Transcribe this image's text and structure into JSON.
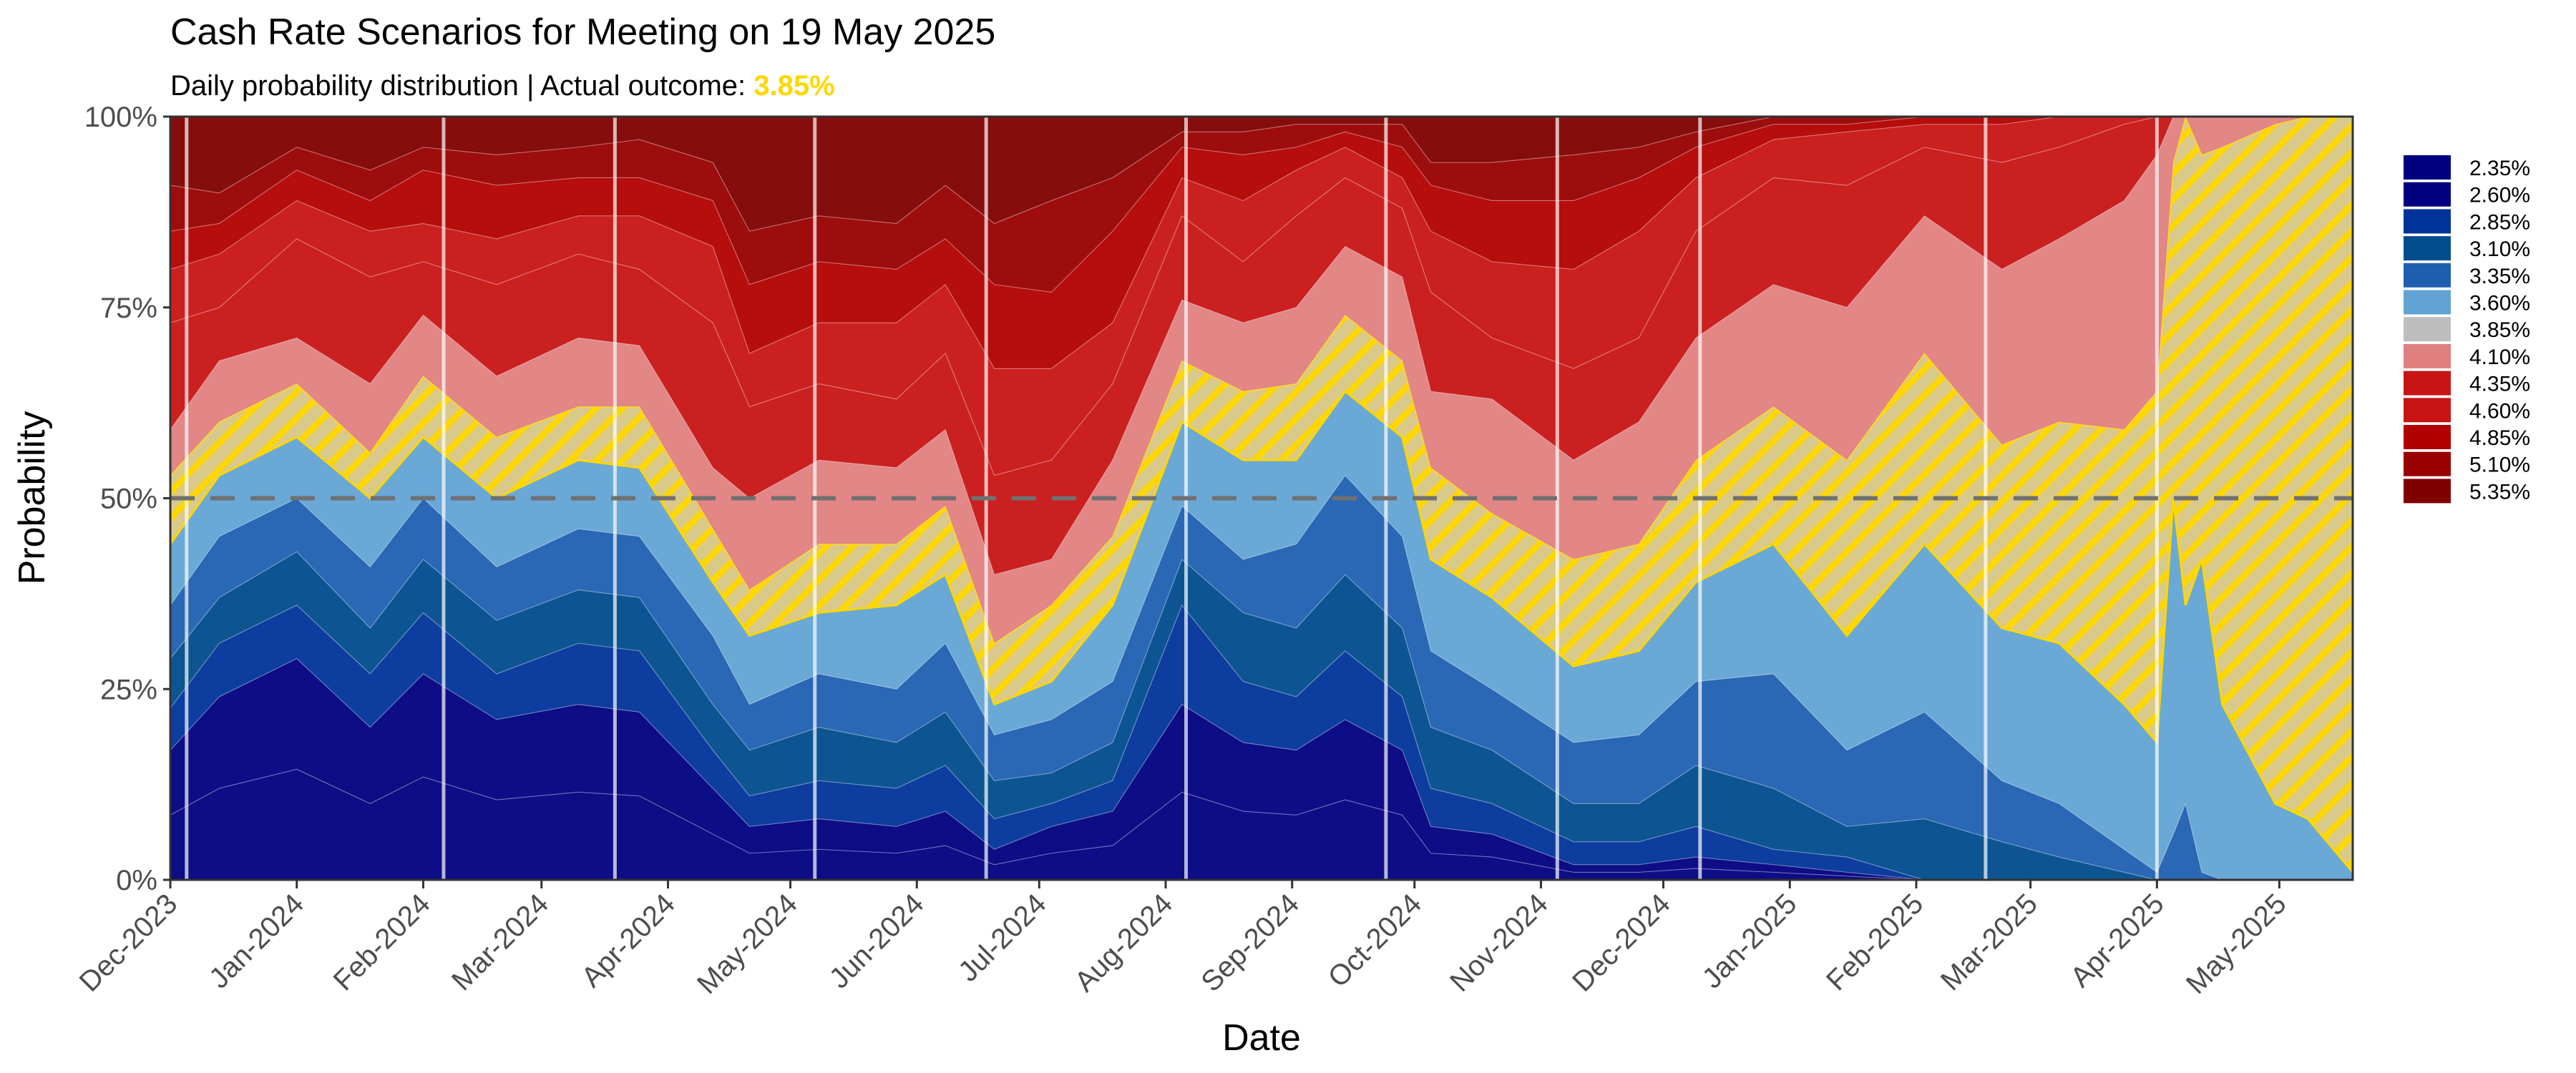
{
  "chart_data": {
    "type": "area",
    "stacked": true,
    "title": "Cash Rate Scenarios for Meeting on 19 May 2025",
    "subtitle_prefix": "Daily probability distribution | Actual outcome: ",
    "subtitle_outcome": "3.85%",
    "outcome_color": "#FFD700",
    "xlabel": "Date",
    "ylabel": "Probability",
    "ylim": [
      0,
      100
    ],
    "x_range": [
      "2023-12-01",
      "2025-05-19"
    ],
    "y_ticks": [
      "0%",
      "25%",
      "50%",
      "75%",
      "100%"
    ],
    "y_tick_values": [
      0,
      25,
      50,
      75,
      100
    ],
    "x_ticks": [
      "Dec-2023",
      "Jan-2024",
      "Feb-2024",
      "Mar-2024",
      "Apr-2024",
      "May-2024",
      "Jun-2024",
      "Jul-2024",
      "Aug-2024",
      "Sep-2024",
      "Oct-2024",
      "Nov-2024",
      "Dec-2024",
      "Jan-2025",
      "Feb-2025",
      "Mar-2025",
      "Apr-2025",
      "May-2025"
    ],
    "x_tick_dates": [
      "2023-12-01",
      "2024-01-01",
      "2024-02-01",
      "2024-03-01",
      "2024-04-01",
      "2024-05-01",
      "2024-06-01",
      "2024-07-01",
      "2024-08-01",
      "2024-09-01",
      "2024-10-01",
      "2024-11-01",
      "2024-12-01",
      "2025-01-01",
      "2025-02-01",
      "2025-03-01",
      "2025-04-01",
      "2025-05-01"
    ],
    "reference_line": 50,
    "meeting_dates": [
      "2023-12-05",
      "2024-02-06",
      "2024-03-19",
      "2024-05-07",
      "2024-06-18",
      "2024-08-06",
      "2024-09-24",
      "2024-11-05",
      "2024-12-10",
      "2025-02-18",
      "2025-04-01"
    ],
    "legend_position": "right",
    "series": [
      {
        "name": "2.35%",
        "color": "#000080"
      },
      {
        "name": "2.60%",
        "color": "#000080"
      },
      {
        "name": "2.85%",
        "color": "#003399"
      },
      {
        "name": "3.10%",
        "color": "#004C8C"
      },
      {
        "name": "3.35%",
        "color": "#1F5FB0"
      },
      {
        "name": "3.60%",
        "color": "#62A3D4"
      },
      {
        "name": "3.85%",
        "color": "#BEBEBE",
        "highlight": true
      },
      {
        "name": "4.10%",
        "color": "#E07F7F"
      },
      {
        "name": "4.35%",
        "color": "#C81414"
      },
      {
        "name": "4.60%",
        "color": "#C81414"
      },
      {
        "name": "4.85%",
        "color": "#B20000"
      },
      {
        "name": "5.10%",
        "color": "#990000"
      },
      {
        "name": "5.35%",
        "color": "#800000"
      }
    ],
    "dates": [
      "2023-12-01",
      "2023-12-13",
      "2024-01-01",
      "2024-01-19",
      "2024-02-01",
      "2024-02-19",
      "2024-03-10",
      "2024-03-25",
      "2024-04-12",
      "2024-04-21",
      "2024-05-08",
      "2024-05-27",
      "2024-06-08",
      "2024-06-20",
      "2024-07-04",
      "2024-07-19",
      "2024-08-05",
      "2024-08-20",
      "2024-09-02",
      "2024-09-14",
      "2024-09-28",
      "2024-10-05",
      "2024-10-20",
      "2024-11-09",
      "2024-11-25",
      "2024-12-09",
      "2024-12-28",
      "2025-01-15",
      "2025-02-03",
      "2025-02-22",
      "2025-03-08",
      "2025-03-24",
      "2025-04-01",
      "2025-04-05",
      "2025-04-08",
      "2025-04-12",
      "2025-04-17",
      "2025-04-30",
      "2025-05-08",
      "2025-05-19"
    ],
    "values": [
      [
        8.5,
        8.5,
        5.5,
        6.5,
        7,
        8,
        9,
        6,
        14,
        7,
        5,
        6,
        9
      ],
      [
        12,
        12,
        7,
        6,
        8,
        8,
        7,
        8,
        7,
        7,
        4,
        4,
        10
      ],
      [
        14.5,
        14.5,
        7,
        7,
        7,
        8,
        7,
        6,
        13,
        5,
        4,
        3,
        4
      ],
      [
        10,
        10,
        7,
        6,
        8,
        9,
        6,
        9,
        14,
        6,
        4,
        4,
        7
      ],
      [
        13.5,
        13.5,
        8,
        7,
        8,
        8,
        8,
        8,
        7,
        5,
        7,
        3,
        4
      ],
      [
        10.5,
        10.5,
        6,
        7,
        7,
        9,
        8,
        8,
        12,
        6,
        7,
        4,
        5
      ],
      [
        11.5,
        11.5,
        8,
        7,
        8,
        9,
        7,
        9,
        11,
        5,
        5,
        4,
        4
      ],
      [
        11,
        11,
        8,
        7,
        8,
        9,
        8,
        8,
        10,
        7,
        5,
        5,
        3
      ],
      [
        6,
        6,
        5,
        6,
        9,
        7,
        7,
        8,
        19,
        10,
        6,
        5,
        6
      ],
      [
        3.5,
        3.5,
        4,
        6,
        6,
        9,
        6,
        12,
        12,
        7,
        9,
        7,
        15
      ],
      [
        4,
        4,
        5,
        7,
        7,
        8,
        9,
        11,
        10,
        8,
        8,
        6,
        13
      ],
      [
        3.5,
        3.5,
        5,
        6,
        7,
        11,
        8,
        10,
        9,
        10,
        7,
        6,
        14
      ],
      [
        4.5,
        4.5,
        6,
        7,
        9,
        9,
        9,
        10,
        10,
        9,
        6,
        7,
        9
      ],
      [
        2,
        2,
        4,
        5,
        6,
        4,
        8,
        9,
        13,
        14,
        11,
        8,
        14
      ],
      [
        3.5,
        3.5,
        3,
        4,
        7,
        5,
        10,
        6,
        13,
        12,
        10,
        12,
        11
      ],
      [
        4.5,
        4.5,
        4,
        5,
        8,
        10,
        9,
        10,
        10,
        8,
        12,
        7,
        8
      ],
      [
        11.5,
        11.5,
        13,
        6,
        7,
        11,
        8,
        8,
        11,
        5,
        4,
        2,
        2
      ],
      [
        9,
        9,
        8,
        9,
        7,
        13,
        9,
        9,
        8,
        8,
        6,
        3,
        2
      ],
      [
        8.5,
        8.5,
        7,
        9,
        11,
        11,
        10,
        10,
        12,
        6,
        3,
        3,
        1
      ],
      [
        10.5,
        10.5,
        9,
        10,
        13,
        11,
        10,
        9,
        9,
        4,
        2,
        1,
        1
      ],
      [
        8.5,
        8.5,
        7,
        9,
        12,
        13,
        10,
        11,
        9,
        4,
        4,
        3,
        1
      ],
      [
        3.5,
        3.5,
        5,
        8,
        10,
        12,
        12,
        10,
        13,
        8,
        6,
        3,
        6
      ],
      [
        3,
        3,
        4,
        7,
        8,
        12,
        11,
        15,
        8,
        10,
        8,
        5,
        6
      ],
      [
        1,
        1,
        3,
        5,
        8,
        10,
        14,
        13,
        12,
        13,
        9,
        6,
        5
      ],
      [
        1,
        1,
        3,
        5,
        9,
        11,
        14,
        16,
        11,
        14,
        7,
        4,
        4
      ],
      [
        1.5,
        1.5,
        4,
        8,
        11,
        13,
        16,
        16,
        14,
        7,
        4,
        2,
        2
      ],
      [
        1,
        1,
        2,
        8,
        15,
        17,
        18,
        16,
        14,
        5,
        2,
        1,
        0
      ],
      [
        0.5,
        0.5,
        2,
        4,
        10,
        15,
        23,
        20,
        16,
        7,
        1,
        1,
        0
      ],
      [
        0,
        0,
        0,
        8,
        14,
        22,
        25,
        18,
        9,
        3,
        1,
        0,
        0
      ],
      [
        0,
        0,
        0,
        5,
        8,
        20,
        24,
        23,
        14,
        5,
        1,
        0,
        0
      ],
      [
        0,
        0,
        0,
        3,
        7,
        21,
        29,
        24,
        12,
        4,
        0,
        0,
        0
      ],
      [
        0,
        0,
        0,
        1,
        3,
        19,
        36,
        30,
        10,
        1,
        0,
        0,
        0
      ],
      [
        0,
        0,
        0,
        0,
        1,
        17,
        46,
        31,
        5,
        0,
        0,
        0,
        0
      ],
      [
        0,
        0,
        0,
        0,
        6,
        44,
        44,
        6,
        0,
        0,
        0,
        0,
        0
      ],
      [
        0,
        0,
        0,
        0,
        10,
        26,
        64,
        0,
        0,
        0,
        0,
        0,
        0
      ],
      [
        0,
        0,
        0,
        0,
        1,
        41,
        53,
        5,
        0,
        0,
        0,
        0,
        0
      ],
      [
        0,
        0,
        0,
        0,
        0,
        23,
        73,
        4,
        0,
        0,
        0,
        0,
        0
      ],
      [
        0,
        0,
        0,
        0,
        0,
        10,
        89,
        1,
        0,
        0,
        0,
        0,
        0
      ],
      [
        0,
        0,
        0,
        0,
        0,
        8,
        92,
        0,
        0,
        0,
        0,
        0,
        0
      ],
      [
        0,
        0,
        0,
        0,
        0,
        1,
        99,
        0,
        0,
        0,
        0,
        0,
        0
      ]
    ]
  }
}
